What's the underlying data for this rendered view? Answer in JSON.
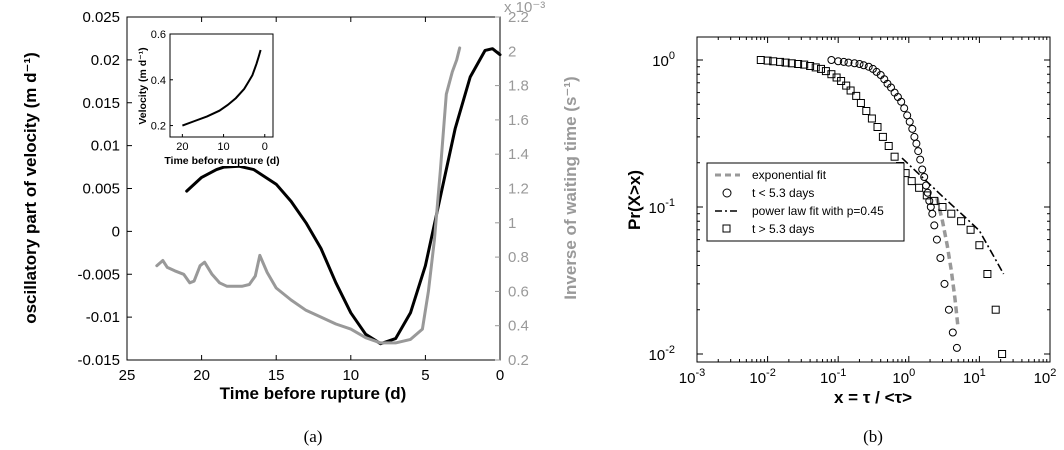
{
  "chart_data": [
    {
      "type": "line",
      "panel_label": "(a)",
      "xlabel": "Time before rupture (d)",
      "ylabel_left": "oscillatory part of velocity (m d⁻¹)",
      "ylabel_right": "Inverse of waiting time (s⁻¹)",
      "right_axis_multiplier": "x 10⁻³",
      "xlim": [
        25,
        0
      ],
      "xticks": [
        "25",
        "20",
        "15",
        "10",
        "5",
        "0"
      ],
      "ylim_left": [
        -0.015,
        0.025
      ],
      "yticks_left": [
        "-0.015",
        "-0.01",
        "-0.005",
        "0",
        "0.005",
        "0.01",
        "0.015",
        "0.02",
        "0.025"
      ],
      "ylim_right": [
        0.2,
        2.2
      ],
      "yticks_right": [
        "0.2",
        "0.4",
        "0.6",
        "0.8",
        "1",
        "1.2",
        "1.4",
        "1.6",
        "1.8",
        "2",
        "2.2"
      ],
      "grid": false,
      "colors": {
        "velocity": "#000000",
        "waiting": "#999999"
      },
      "series": [
        {
          "axis": "left",
          "x": [
            21,
            20,
            19,
            18.5,
            17.5,
            16.5,
            15,
            14,
            13,
            12,
            11,
            10,
            9,
            8,
            7,
            6,
            5,
            4,
            3,
            2,
            1,
            0.5,
            0
          ],
          "values": [
            0.0047,
            0.0063,
            0.0072,
            0.0075,
            0.0076,
            0.0072,
            0.0055,
            0.0035,
            0.001,
            -0.002,
            -0.006,
            -0.0095,
            -0.012,
            -0.0131,
            -0.0125,
            -0.0095,
            -0.004,
            0.004,
            0.012,
            0.018,
            0.0211,
            0.0213,
            0.0206
          ]
        },
        {
          "axis": "right",
          "x": [
            23,
            22.6,
            22.3,
            21.8,
            21.2,
            20.8,
            20.5,
            20.1,
            19.8,
            19.3,
            18.8,
            18.3,
            17.8,
            17.3,
            16.8,
            16.4,
            16.1,
            15.6,
            15,
            14,
            13,
            12,
            11,
            10,
            9,
            8,
            7,
            6,
            5.2,
            4.8,
            4.4,
            4.0,
            3.6,
            3.2,
            2.9,
            2.7
          ],
          "values": [
            0.75,
            0.78,
            0.74,
            0.72,
            0.7,
            0.65,
            0.66,
            0.75,
            0.77,
            0.7,
            0.65,
            0.63,
            0.63,
            0.63,
            0.64,
            0.69,
            0.81,
            0.71,
            0.62,
            0.55,
            0.49,
            0.45,
            0.41,
            0.38,
            0.33,
            0.3,
            0.3,
            0.32,
            0.38,
            0.6,
            0.9,
            1.3,
            1.75,
            1.88,
            1.95,
            2.02
          ]
        }
      ],
      "inset": {
        "xlabel": "Time before rupture (d)",
        "ylabel": "Velocity (m d⁻¹)",
        "xlim": [
          23,
          -2
        ],
        "xticks": [
          "20",
          "10",
          "0"
        ],
        "ylim": [
          0.15,
          0.6
        ],
        "yticks": [
          "0.2",
          "0.4",
          "0.6"
        ],
        "x": [
          20,
          17,
          14,
          11,
          9,
          7,
          5,
          4,
          3,
          2,
          1.5,
          1
        ],
        "values": [
          0.2,
          0.22,
          0.24,
          0.265,
          0.29,
          0.32,
          0.36,
          0.39,
          0.42,
          0.47,
          0.5,
          0.53
        ]
      }
    },
    {
      "type": "scatter",
      "panel_label": "(b)",
      "xlabel": "x = τ / <τ>",
      "ylabel": "Pr(X>x)",
      "xscale": "log",
      "yscale": "log",
      "xlim": [
        0.001,
        100
      ],
      "ylim": [
        0.01,
        1.5
      ],
      "xticks": [
        {
          "base": "10",
          "exp": "-3"
        },
        {
          "base": "10",
          "exp": "-2"
        },
        {
          "base": "10",
          "exp": "-1"
        },
        {
          "base": "10",
          "exp": "0"
        },
        {
          "base": "10",
          "exp": "1"
        },
        {
          "base": "10",
          "exp": "2"
        }
      ],
      "yticks": [
        {
          "base": "10",
          "exp": "-2"
        },
        {
          "base": "10",
          "exp": "-1"
        },
        {
          "base": "10",
          "exp": "0"
        }
      ],
      "grid": false,
      "legend_position": "center-left",
      "colors": {
        "exponential": "#999999",
        "powerlaw": "#000000",
        "markers": "#000000"
      },
      "legend": [
        "exponential fit",
        "t < 5.3 days",
        "power law fit with p=0.45",
        "t > 5.3 days"
      ],
      "series": [
        {
          "name": "exponential fit",
          "style": "dashed",
          "x": [
            2.5,
            3.0,
            3.5,
            4.0,
            4.5,
            5.0
          ],
          "values": [
            0.115,
            0.08,
            0.055,
            0.037,
            0.024,
            0.015
          ]
        },
        {
          "name": "t < 5.3 days",
          "marker": "circle",
          "x": [
            0.08,
            0.1,
            0.12,
            0.14,
            0.17,
            0.2,
            0.23,
            0.27,
            0.31,
            0.35,
            0.4,
            0.45,
            0.5,
            0.56,
            0.63,
            0.7,
            0.78,
            0.86,
            0.95,
            1.03,
            1.12,
            1.2,
            1.28,
            1.36,
            1.45,
            1.55,
            1.65,
            1.75,
            1.85,
            1.95,
            2.05,
            2.15,
            2.3,
            2.5,
            2.8,
            3.2,
            3.7,
            4.2,
            4.8
          ],
          "values": [
            1.0,
            0.98,
            0.97,
            0.96,
            0.95,
            0.94,
            0.92,
            0.9,
            0.87,
            0.83,
            0.79,
            0.74,
            0.69,
            0.65,
            0.6,
            0.56,
            0.52,
            0.47,
            0.42,
            0.38,
            0.34,
            0.3,
            0.27,
            0.24,
            0.21,
            0.18,
            0.16,
            0.14,
            0.125,
            0.11,
            0.1,
            0.09,
            0.075,
            0.06,
            0.045,
            0.03,
            0.02,
            0.014,
            0.011
          ]
        },
        {
          "name": "t > 5.3 days",
          "marker": "square",
          "x": [
            0.008,
            0.01,
            0.012,
            0.015,
            0.018,
            0.022,
            0.027,
            0.033,
            0.04,
            0.048,
            0.057,
            0.067,
            0.08,
            0.095,
            0.11,
            0.13,
            0.15,
            0.18,
            0.21,
            0.25,
            0.3,
            0.36,
            0.43,
            0.52,
            0.63,
            0.75,
            0.9,
            1.1,
            1.4,
            1.8,
            2.3,
            3.0,
            4.0,
            5.5,
            7.5,
            10,
            13,
            17,
            21
          ],
          "values": [
            1.0,
            0.99,
            0.98,
            0.97,
            0.96,
            0.95,
            0.94,
            0.93,
            0.91,
            0.89,
            0.87,
            0.84,
            0.8,
            0.76,
            0.72,
            0.67,
            0.62,
            0.57,
            0.51,
            0.45,
            0.4,
            0.35,
            0.3,
            0.26,
            0.22,
            0.19,
            0.17,
            0.15,
            0.135,
            0.12,
            0.11,
            0.1,
            0.09,
            0.08,
            0.07,
            0.055,
            0.035,
            0.02,
            0.01
          ]
        },
        {
          "name": "power law fit with p=0.45",
          "style": "dashdot",
          "x": [
            0.8,
            1.5,
            3,
            6,
            10,
            22
          ],
          "values": [
            0.215,
            0.162,
            0.118,
            0.087,
            0.069,
            0.035
          ]
        }
      ]
    }
  ]
}
